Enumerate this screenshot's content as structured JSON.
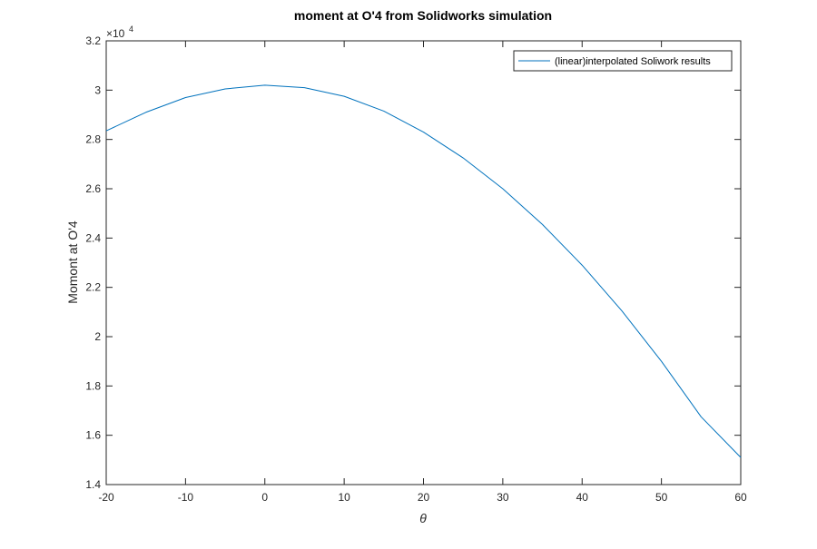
{
  "chart_data": {
    "type": "line",
    "title": "moment at O'4  from Solidworks simulation",
    "xlabel": "θ",
    "ylabel": "Momont at O'4",
    "exponent_label": "×10",
    "exponent_power": "4",
    "xlim": [
      -20,
      60
    ],
    "ylim": [
      1.4,
      3.2
    ],
    "y_scale_factor": 10000,
    "xticks": [
      -20,
      -10,
      0,
      10,
      20,
      30,
      40,
      50,
      60
    ],
    "xtick_labels": [
      "-20",
      "-10",
      "0",
      "10",
      "20",
      "30",
      "40",
      "50",
      "60"
    ],
    "yticks": [
      1.4,
      1.6,
      1.8,
      2.0,
      2.2,
      2.4,
      2.6,
      2.8,
      3.0,
      3.2
    ],
    "ytick_labels": [
      "1.4",
      "1.6",
      "1.8",
      "2",
      "2.2",
      "2.4",
      "2.6",
      "2.8",
      "3",
      "3.2"
    ],
    "grid": false,
    "legend_position": "top-right",
    "series": [
      {
        "name": "(linear)interpolated Soliwork results",
        "color": "#0072BD",
        "x": [
          -20,
          -15,
          -10,
          -5,
          0,
          5,
          10,
          15,
          20,
          25,
          30,
          35,
          40,
          45,
          50,
          55,
          60
        ],
        "y": [
          2.835,
          2.91,
          2.97,
          3.005,
          3.02,
          3.01,
          2.975,
          2.915,
          2.83,
          2.725,
          2.6,
          2.455,
          2.29,
          2.105,
          1.9,
          1.675,
          1.51
        ]
      }
    ]
  }
}
